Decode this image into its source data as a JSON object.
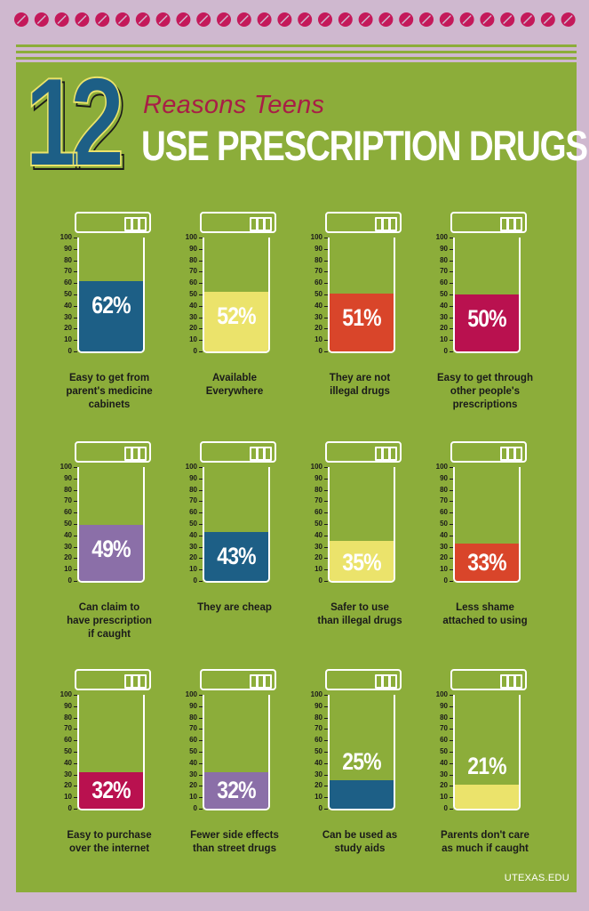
{
  "header": {
    "number": "12",
    "subtitle": "Reasons Teens",
    "title": "USE PRESCRIPTION DRUGS"
  },
  "scale_ticks": [
    "100",
    "90",
    "80",
    "70",
    "60",
    "50",
    "40",
    "30",
    "20",
    "10",
    "0"
  ],
  "chart_data": {
    "type": "bar",
    "categories": [
      "Easy to get from parent's medicine cabinets",
      "Available Everywhere",
      "They are not illegal drugs",
      "Easy to get through other people's prescriptions",
      "Can claim to have prescription if caught",
      "They are cheap",
      "Safer to use than illegal drugs",
      "Less shame attached to using",
      "Easy to purchase over the internet",
      "Fewer side effects than street drugs",
      "Can be used as study aids",
      "Parents don't care as much if caught"
    ],
    "values": [
      62,
      52,
      51,
      50,
      49,
      43,
      35,
      33,
      32,
      32,
      25,
      21
    ],
    "ylim": [
      0,
      100
    ],
    "colors": [
      "#1d5f86",
      "#ebe36b",
      "#d9452a",
      "#b9114f",
      "#8b6fa8",
      "#1d5f86",
      "#ebe36b",
      "#d9452a",
      "#b9114f",
      "#8b6fa8",
      "#1d5f86",
      "#ebe36b"
    ]
  },
  "bottles": [
    {
      "percent": "62%",
      "line1": "Easy to get from",
      "line2": "parent's medicine",
      "line3": "cabinets"
    },
    {
      "percent": "52%",
      "line1": "Available",
      "line2": "Everywhere",
      "line3": ""
    },
    {
      "percent": "51%",
      "line1": "They are not",
      "line2": "illegal drugs",
      "line3": ""
    },
    {
      "percent": "50%",
      "line1": "Easy to get through",
      "line2": "other people's",
      "line3": "prescriptions"
    },
    {
      "percent": "49%",
      "line1": "Can claim to",
      "line2": "have prescription",
      "line3": "if caught"
    },
    {
      "percent": "43%",
      "line1": "They are cheap",
      "line2": "",
      "line3": ""
    },
    {
      "percent": "35%",
      "line1": "Safer to use",
      "line2": "than illegal drugs",
      "line3": ""
    },
    {
      "percent": "33%",
      "line1": "Less shame",
      "line2": "attached to using",
      "line3": ""
    },
    {
      "percent": "32%",
      "line1": "Easy to purchase",
      "line2": "over the internet",
      "line3": ""
    },
    {
      "percent": "32%",
      "line1": "Fewer side effects",
      "line2": "than street drugs",
      "line3": ""
    },
    {
      "percent": "25%",
      "line1": "Can be used as",
      "line2": "study aids",
      "line3": ""
    },
    {
      "percent": "21%",
      "line1": "Parents don't care",
      "line2": "as much if caught",
      "line3": ""
    }
  ],
  "footer": {
    "source": "UTEXAS.EDU"
  },
  "colors": {
    "panel": "#8cad3a",
    "border": "#cfb8cf",
    "pill": "#c4195a",
    "title_accent": "#a81e46",
    "numeral": "#1d5f86"
  }
}
